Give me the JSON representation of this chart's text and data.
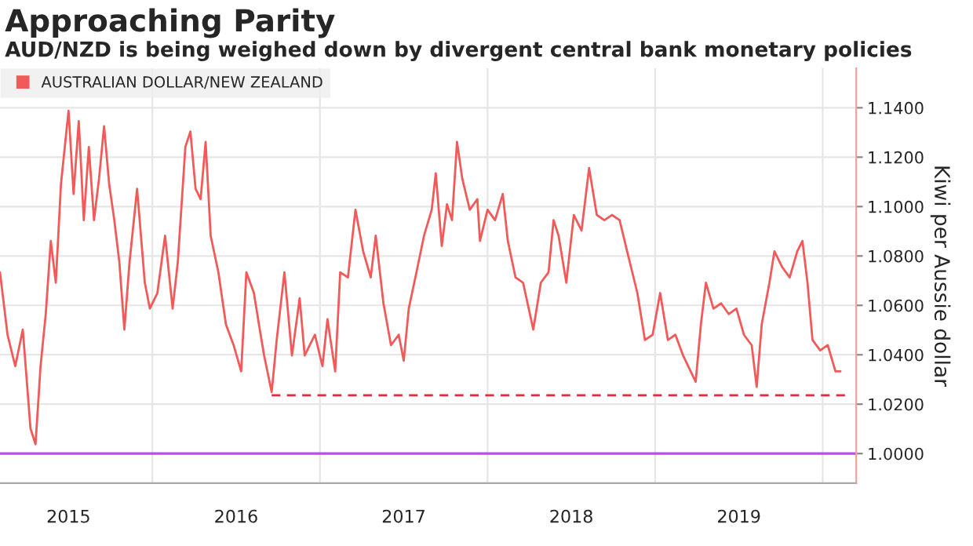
{
  "chart_data": {
    "type": "line",
    "title": "Approaching Parity",
    "subtitle": "AUD/NZD is being weighed down by divergent central bank monetary policies",
    "ylabel": "Kiwi per Aussie dollar",
    "xlim": [
      2015.091,
      2020.2
    ],
    "ylim": [
      0.988,
      1.156
    ],
    "xticks": [
      {
        "value": 2015.5,
        "label": "2015"
      },
      {
        "value": 2016,
        "label": null
      },
      {
        "value": 2016.5,
        "label": "2016"
      },
      {
        "value": 2017,
        "label": null
      },
      {
        "value": 2017.5,
        "label": "2017"
      },
      {
        "value": 2018,
        "label": null
      },
      {
        "value": 2018.5,
        "label": "2018"
      },
      {
        "value": 2019,
        "label": null
      },
      {
        "value": 2019.5,
        "label": "2019"
      },
      {
        "value": 2020,
        "label": null
      }
    ],
    "yticks": [
      {
        "value": 1.0,
        "label": "1.0000"
      },
      {
        "value": 1.02,
        "label": "1.0200"
      },
      {
        "value": 1.04,
        "label": "1.0400"
      },
      {
        "value": 1.06,
        "label": "1.0600"
      },
      {
        "value": 1.08,
        "label": "1.0800"
      },
      {
        "value": 1.1,
        "label": "1.1000"
      },
      {
        "value": 1.12,
        "label": "1.1200"
      },
      {
        "value": 1.14,
        "label": "1.1400"
      }
    ],
    "grid": true,
    "legend": "top left",
    "ref_lines": [
      {
        "axis": "y",
        "value": 1.0,
        "label": null,
        "color": "#b84ef0",
        "line_style": "solid"
      }
    ],
    "series": [
      {
        "name": "AUSTRALIAN DOLLAR/NEW ZEALAND",
        "color": "#f25a5a",
        "line_style": "solid",
        "x": [
          2015.091,
          2015.136,
          2015.182,
          2015.227,
          2015.273,
          2015.303,
          2015.333,
          2015.364,
          2015.394,
          2015.424,
          2015.455,
          2015.5,
          2015.53,
          2015.561,
          2015.591,
          2015.621,
          2015.652,
          2015.682,
          2015.712,
          2015.742,
          2015.773,
          2015.803,
          2015.833,
          2015.864,
          2015.909,
          2015.955,
          2015.985,
          2016.03,
          2016.076,
          2016.121,
          2016.152,
          2016.197,
          2016.227,
          2016.258,
          2016.288,
          2016.318,
          2016.348,
          2016.394,
          2016.439,
          2016.485,
          2016.53,
          2016.561,
          2016.606,
          2016.636,
          2016.667,
          2016.712,
          2016.742,
          2016.788,
          2016.833,
          2016.879,
          2016.909,
          2016.97,
          2017.015,
          2017.045,
          2017.091,
          2017.121,
          2017.167,
          2017.212,
          2017.258,
          2017.303,
          2017.333,
          2017.379,
          2017.424,
          2017.47,
          2017.5,
          2017.53,
          2017.576,
          2017.621,
          2017.667,
          2017.691,
          2017.727,
          2017.758,
          2017.788,
          2017.818,
          2017.849,
          2017.894,
          2017.939,
          2017.955,
          2018.0,
          2018.045,
          2018.091,
          2018.121,
          2018.167,
          2018.212,
          2018.273,
          2018.318,
          2018.364,
          2018.394,
          2018.424,
          2018.47,
          2018.515,
          2018.561,
          2018.606,
          2018.652,
          2018.697,
          2018.742,
          2018.788,
          2018.833,
          2018.894,
          2018.939,
          2018.985,
          2019.03,
          2019.076,
          2019.121,
          2019.167,
          2019.212,
          2019.242,
          2019.273,
          2019.303,
          2019.348,
          2019.394,
          2019.439,
          2019.485,
          2019.53,
          2019.576,
          2019.606,
          2019.636,
          2019.682,
          2019.712,
          2019.758,
          2019.803,
          2019.848,
          2019.879,
          2019.909,
          2019.939,
          2019.985,
          2020.03,
          2020.076,
          2020.106
        ],
        "values": [
          1.0734,
          1.0481,
          1.0354,
          1.0502,
          1.0101,
          1.0038,
          1.0354,
          1.0565,
          1.0861,
          1.0692,
          1.1093,
          1.1388,
          1.1051,
          1.1346,
          1.0945,
          1.1241,
          1.0945,
          1.1114,
          1.1325,
          1.1093,
          1.0945,
          1.0776,
          1.0502,
          1.0776,
          1.1072,
          1.0692,
          1.0587,
          1.065,
          1.0882,
          1.0587,
          1.0776,
          1.1241,
          1.1304,
          1.1072,
          1.103,
          1.1262,
          1.0882,
          1.0734,
          1.0523,
          1.0439,
          1.0333,
          1.0734,
          1.065,
          1.0523,
          1.0397,
          1.0249,
          1.046,
          1.0734,
          1.0397,
          1.0629,
          1.0397,
          1.0481,
          1.0354,
          1.0544,
          1.0333,
          1.0734,
          1.0713,
          1.0987,
          1.0819,
          1.0713,
          1.0882,
          1.0608,
          1.0439,
          1.0481,
          1.0376,
          1.0587,
          1.0734,
          1.0882,
          1.0987,
          1.1135,
          1.084,
          1.1009,
          1.0945,
          1.1262,
          1.1114,
          1.0987,
          1.103,
          1.0861,
          1.0987,
          1.0945,
          1.1051,
          1.0861,
          1.0713,
          1.0692,
          1.0502,
          1.0692,
          1.0734,
          1.0945,
          1.0882,
          1.0692,
          1.0966,
          1.0903,
          1.1156,
          1.0966,
          1.0945,
          1.0966,
          1.0945,
          1.0819,
          1.065,
          1.046,
          1.0481,
          1.065,
          1.046,
          1.0481,
          1.0397,
          1.0333,
          1.0291,
          1.0523,
          1.0692,
          1.0587,
          1.0608,
          1.0565,
          1.0587,
          1.0481,
          1.0439,
          1.027,
          1.0523,
          1.0692,
          1.0819,
          1.0755,
          1.0713,
          1.0819,
          1.0861,
          1.0692,
          1.046,
          1.0418,
          1.0439,
          1.0333,
          1.0333
        ]
      },
      {
        "color": "#e8283c",
        "line_style": "dashed",
        "x": [
          2016.712,
          2020.167
        ],
        "values": [
          1.0236,
          1.0236
        ]
      }
    ]
  }
}
